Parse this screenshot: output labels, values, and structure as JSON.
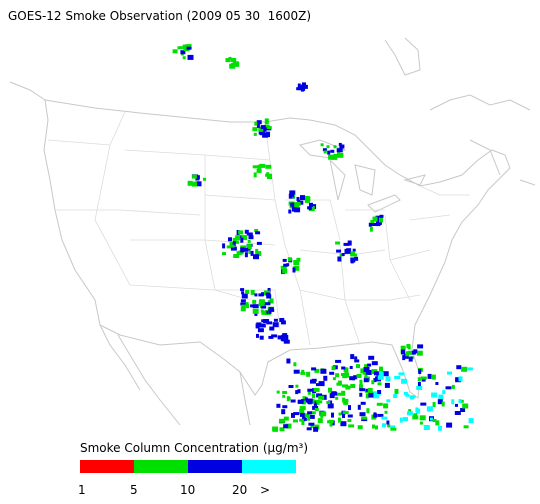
{
  "title": "GOES-12 Smoke Observation (2009 05 30  1600Z)",
  "legend": {
    "title": "Smoke Column Concentration (μg/m³)",
    "colors": [
      "#ff0000",
      "#00e000",
      "#0000e0",
      "#00ffff"
    ],
    "tick_labels": [
      "1",
      "5",
      "10",
      "20",
      ">"
    ]
  }
}
